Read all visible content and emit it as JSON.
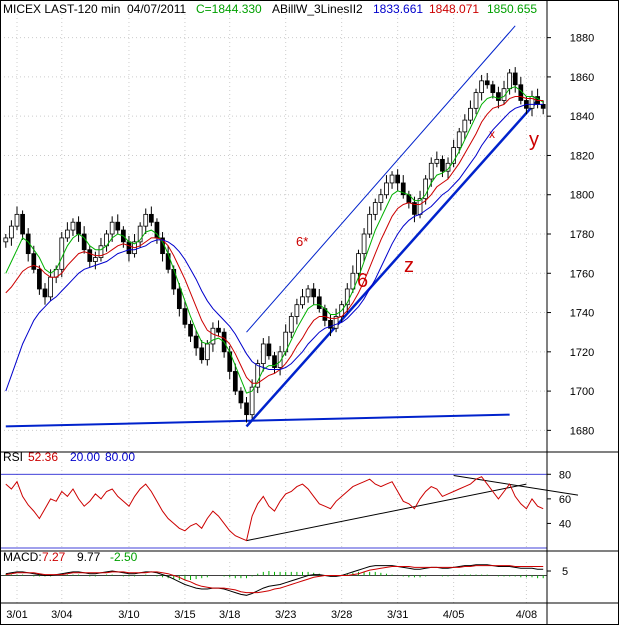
{
  "header": {
    "symbol": "MICEX LAST-120 min",
    "date": "04/07/2011",
    "close": "C=1844.330",
    "indicator_name": "ABillW_3LinesII2",
    "line1_value": "1833.661",
    "line2_value": "1848.071",
    "line3_value": "1850.655"
  },
  "rsi_header": {
    "label": "RSI",
    "value": "52.36",
    "level_low": "20.00",
    "level_high": "80.00"
  },
  "macd_header": {
    "label": "MACD:",
    "value1": "7.27",
    "value2": "9.77",
    "value3": "-2.50"
  },
  "annotations": {
    "six_star": "6*",
    "six": "6",
    "z": "z",
    "y": "y",
    "x": "x"
  },
  "colors": {
    "up_green": "#00b000",
    "down_red": "#cc0000",
    "indicator_blue": "#0000cc",
    "candle": "#000000",
    "trendline": "#0022cc",
    "grid": "#cccccc"
  },
  "chart_data": [
    {
      "type": "candlestick",
      "title": "MICEX LAST-120 min",
      "ylim": [
        1670,
        1890
      ],
      "y_ticks": [
        "1880",
        "1860",
        "1840",
        "1820",
        "1800",
        "1780",
        "1760",
        "1740",
        "1720",
        "1700",
        "1680"
      ],
      "x_ticks": [
        "3/01",
        "3/04",
        "3/10",
        "3/15",
        "3/18",
        "3/23",
        "3/28",
        "3/31",
        "4/05",
        "4/08"
      ],
      "close": [
        1778,
        1784,
        1790,
        1780,
        1770,
        1762,
        1752,
        1748,
        1758,
        1762,
        1778,
        1782,
        1786,
        1780,
        1772,
        1766,
        1768,
        1774,
        1780,
        1786,
        1782,
        1776,
        1770,
        1776,
        1784,
        1790,
        1786,
        1778,
        1770,
        1762,
        1752,
        1742,
        1734,
        1728,
        1722,
        1716,
        1724,
        1732,
        1730,
        1720,
        1710,
        1700,
        1694,
        1688,
        1702,
        1714,
        1724,
        1718,
        1712,
        1720,
        1730,
        1738,
        1744,
        1748,
        1752,
        1748,
        1742,
        1736,
        1732,
        1738,
        1744,
        1752,
        1760,
        1770,
        1780,
        1790,
        1796,
        1800,
        1806,
        1810,
        1806,
        1800,
        1796,
        1790,
        1798,
        1808,
        1816,
        1818,
        1812,
        1816,
        1824,
        1832,
        1838,
        1844,
        1852,
        1858,
        1856,
        1852,
        1848,
        1854,
        1862,
        1856,
        1848,
        1844,
        1850,
        1846,
        1844
      ],
      "series": [
        {
          "name": "",
          "color": "#00b000",
          "values": [
            1760,
            1766,
            1772,
            1778,
            1776,
            1772,
            1768,
            1762,
            1760,
            1762,
            1768,
            1774,
            1778,
            1780,
            1778,
            1774,
            1772,
            1772,
            1774,
            1778,
            1780,
            1779,
            1776,
            1775,
            1777,
            1781,
            1782,
            1780,
            1776,
            1770,
            1762,
            1754,
            1746,
            1738,
            1731,
            1725,
            1724,
            1726,
            1727,
            1725,
            1720,
            1713,
            1706,
            1699,
            1700,
            1705,
            1711,
            1713,
            1713,
            1715,
            1720,
            1726,
            1732,
            1737,
            1742,
            1744,
            1744,
            1742,
            1739,
            1739,
            1741,
            1745,
            1751,
            1758,
            1766,
            1774,
            1782,
            1788,
            1794,
            1800,
            1802,
            1801,
            1800,
            1797,
            1797,
            1800,
            1806,
            1810,
            1811,
            1813,
            1817,
            1822,
            1828,
            1834,
            1840,
            1846,
            1849,
            1850,
            1849,
            1850,
            1854,
            1855,
            1853,
            1850,
            1850,
            1849,
            1847
          ]
        },
        {
          "name": "",
          "color": "#cc0000",
          "values": [
            1750,
            1753,
            1757,
            1761,
            1763,
            1764,
            1763,
            1760,
            1758,
            1758,
            1760,
            1764,
            1767,
            1770,
            1771,
            1770,
            1769,
            1769,
            1770,
            1772,
            1774,
            1775,
            1774,
            1773,
            1774,
            1776,
            1778,
            1778,
            1777,
            1774,
            1769,
            1763,
            1757,
            1750,
            1743,
            1736,
            1731,
            1729,
            1728,
            1727,
            1724,
            1719,
            1713,
            1707,
            1704,
            1704,
            1706,
            1708,
            1709,
            1711,
            1714,
            1718,
            1723,
            1727,
            1732,
            1736,
            1738,
            1738,
            1737,
            1737,
            1738,
            1741,
            1745,
            1750,
            1756,
            1763,
            1770,
            1777,
            1783,
            1789,
            1793,
            1795,
            1796,
            1795,
            1795,
            1797,
            1800,
            1804,
            1806,
            1808,
            1812,
            1816,
            1821,
            1826,
            1831,
            1837,
            1841,
            1844,
            1845,
            1846,
            1849,
            1850,
            1850,
            1849,
            1849,
            1848,
            1848
          ]
        },
        {
          "name": "",
          "color": "#0000cc",
          "values": [
            1700,
            1708,
            1716,
            1724,
            1730,
            1736,
            1740,
            1743,
            1746,
            1748,
            1751,
            1754,
            1757,
            1760,
            1762,
            1763,
            1764,
            1765,
            1766,
            1768,
            1770,
            1771,
            1772,
            1772,
            1773,
            1774,
            1776,
            1777,
            1777,
            1776,
            1774,
            1771,
            1767,
            1762,
            1757,
            1751,
            1746,
            1742,
            1739,
            1736,
            1733,
            1729,
            1724,
            1719,
            1715,
            1713,
            1712,
            1711,
            1711,
            1711,
            1712,
            1714,
            1717,
            1720,
            1724,
            1727,
            1730,
            1732,
            1733,
            1734,
            1735,
            1737,
            1740,
            1743,
            1747,
            1752,
            1757,
            1763,
            1769,
            1775,
            1780,
            1784,
            1787,
            1789,
            1790,
            1792,
            1794,
            1797,
            1800,
            1802,
            1805,
            1808,
            1812,
            1816,
            1820,
            1825,
            1829,
            1833,
            1836,
            1839,
            1842,
            1844,
            1845,
            1846,
            1846,
            1846,
            1846
          ]
        }
      ]
    },
    {
      "type": "line",
      "title": "RSI",
      "ylim": [
        20,
        90
      ],
      "y_ticks": [
        "80",
        "60",
        "40"
      ],
      "levels": [
        20,
        80
      ],
      "series": [
        {
          "name": "RSI",
          "color": "#cc0000",
          "values": [
            72,
            68,
            74,
            62,
            55,
            50,
            44,
            52,
            60,
            58,
            66,
            62,
            68,
            60,
            54,
            58,
            64,
            60,
            66,
            68,
            62,
            58,
            54,
            62,
            68,
            72,
            66,
            58,
            50,
            44,
            40,
            36,
            34,
            38,
            40,
            36,
            44,
            50,
            46,
            40,
            34,
            30,
            28,
            26,
            46,
            56,
            62,
            54,
            50,
            58,
            64,
            66,
            70,
            72,
            68,
            62,
            56,
            54,
            52,
            58,
            62,
            66,
            70,
            72,
            74,
            76,
            72,
            70,
            72,
            74,
            66,
            58,
            56,
            52,
            60,
            66,
            70,
            68,
            62,
            64,
            66,
            68,
            70,
            72,
            76,
            78,
            72,
            66,
            60,
            66,
            72,
            62,
            56,
            52,
            60,
            54,
            52
          ]
        }
      ]
    },
    {
      "type": "line",
      "title": "MACD",
      "ylim": [
        -25,
        15
      ],
      "y_ticks": [
        "5"
      ],
      "series": [
        {
          "name": "MACD",
          "color": "#000000",
          "values": [
            2,
            3,
            4,
            4,
            3,
            2,
            1,
            0,
            0,
            1,
            2,
            3,
            4,
            4,
            3,
            2,
            2,
            3,
            4,
            5,
            4,
            3,
            2,
            2,
            3,
            4,
            4,
            3,
            1,
            -1,
            -4,
            -7,
            -10,
            -12,
            -14,
            -15,
            -15,
            -14,
            -14,
            -15,
            -17,
            -19,
            -21,
            -22,
            -20,
            -17,
            -14,
            -12,
            -11,
            -10,
            -8,
            -6,
            -4,
            -2,
            0,
            1,
            1,
            0,
            -1,
            -1,
            0,
            2,
            4,
            6,
            8,
            10,
            11,
            11,
            11,
            11,
            10,
            9,
            8,
            7,
            7,
            8,
            9,
            9,
            8,
            8,
            9,
            10,
            11,
            11,
            12,
            12,
            12,
            11,
            10,
            10,
            10,
            9,
            8,
            8,
            8,
            7,
            7
          ]
        },
        {
          "name": "Signal",
          "color": "#cc0000",
          "values": [
            1,
            2,
            3,
            3,
            3,
            3,
            2,
            1,
            1,
            1,
            1,
            2,
            3,
            3,
            3,
            3,
            3,
            3,
            3,
            4,
            4,
            4,
            3,
            3,
            3,
            3,
            4,
            4,
            3,
            2,
            0,
            -2,
            -5,
            -7,
            -10,
            -12,
            -13,
            -14,
            -14,
            -14,
            -15,
            -16,
            -18,
            -19,
            -19,
            -19,
            -18,
            -17,
            -15,
            -14,
            -12,
            -10,
            -8,
            -6,
            -4,
            -2,
            -1,
            0,
            0,
            0,
            0,
            0,
            1,
            2,
            4,
            6,
            7,
            8,
            9,
            10,
            10,
            10,
            10,
            9,
            9,
            9,
            9,
            9,
            9,
            9,
            9,
            9,
            10,
            10,
            11,
            11,
            11,
            11,
            11,
            11,
            11,
            10,
            10,
            10,
            10,
            10,
            10
          ]
        }
      ]
    }
  ]
}
